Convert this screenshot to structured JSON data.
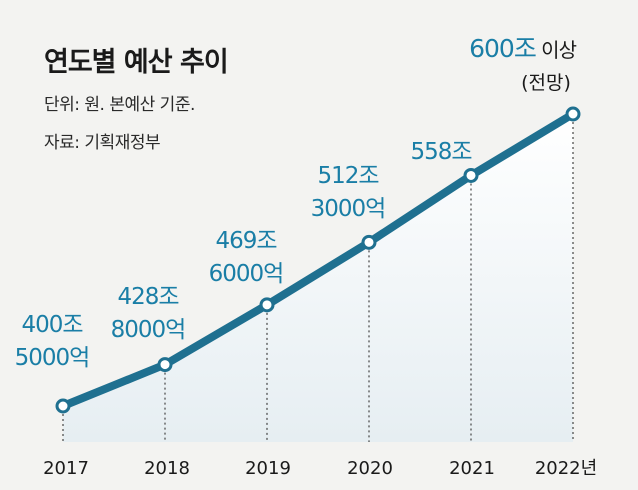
{
  "title": "연도별 예산 추이",
  "unit": "단위: 원. 본예산 기준.",
  "source": "자료: 기획재정부",
  "colors": {
    "line": "#1f7090",
    "label": "#1a7ea6",
    "area_top": "#ffffff",
    "area_bottom": "#e6eef2"
  },
  "chart_data": {
    "type": "line",
    "x": [
      "2017",
      "2018",
      "2019",
      "2020",
      "2021",
      "2022년"
    ],
    "values": [
      400.5,
      428.8,
      469.6,
      512.3,
      558,
      600
    ],
    "unit": "조원",
    "labels": [
      [
        "400조",
        "5000억"
      ],
      [
        "428조",
        "8000억"
      ],
      [
        "469조",
        "6000억"
      ],
      [
        "512조",
        "3000억"
      ],
      [
        "558조"
      ],
      [
        "600조",
        " 이상",
        "(전망)"
      ]
    ]
  }
}
